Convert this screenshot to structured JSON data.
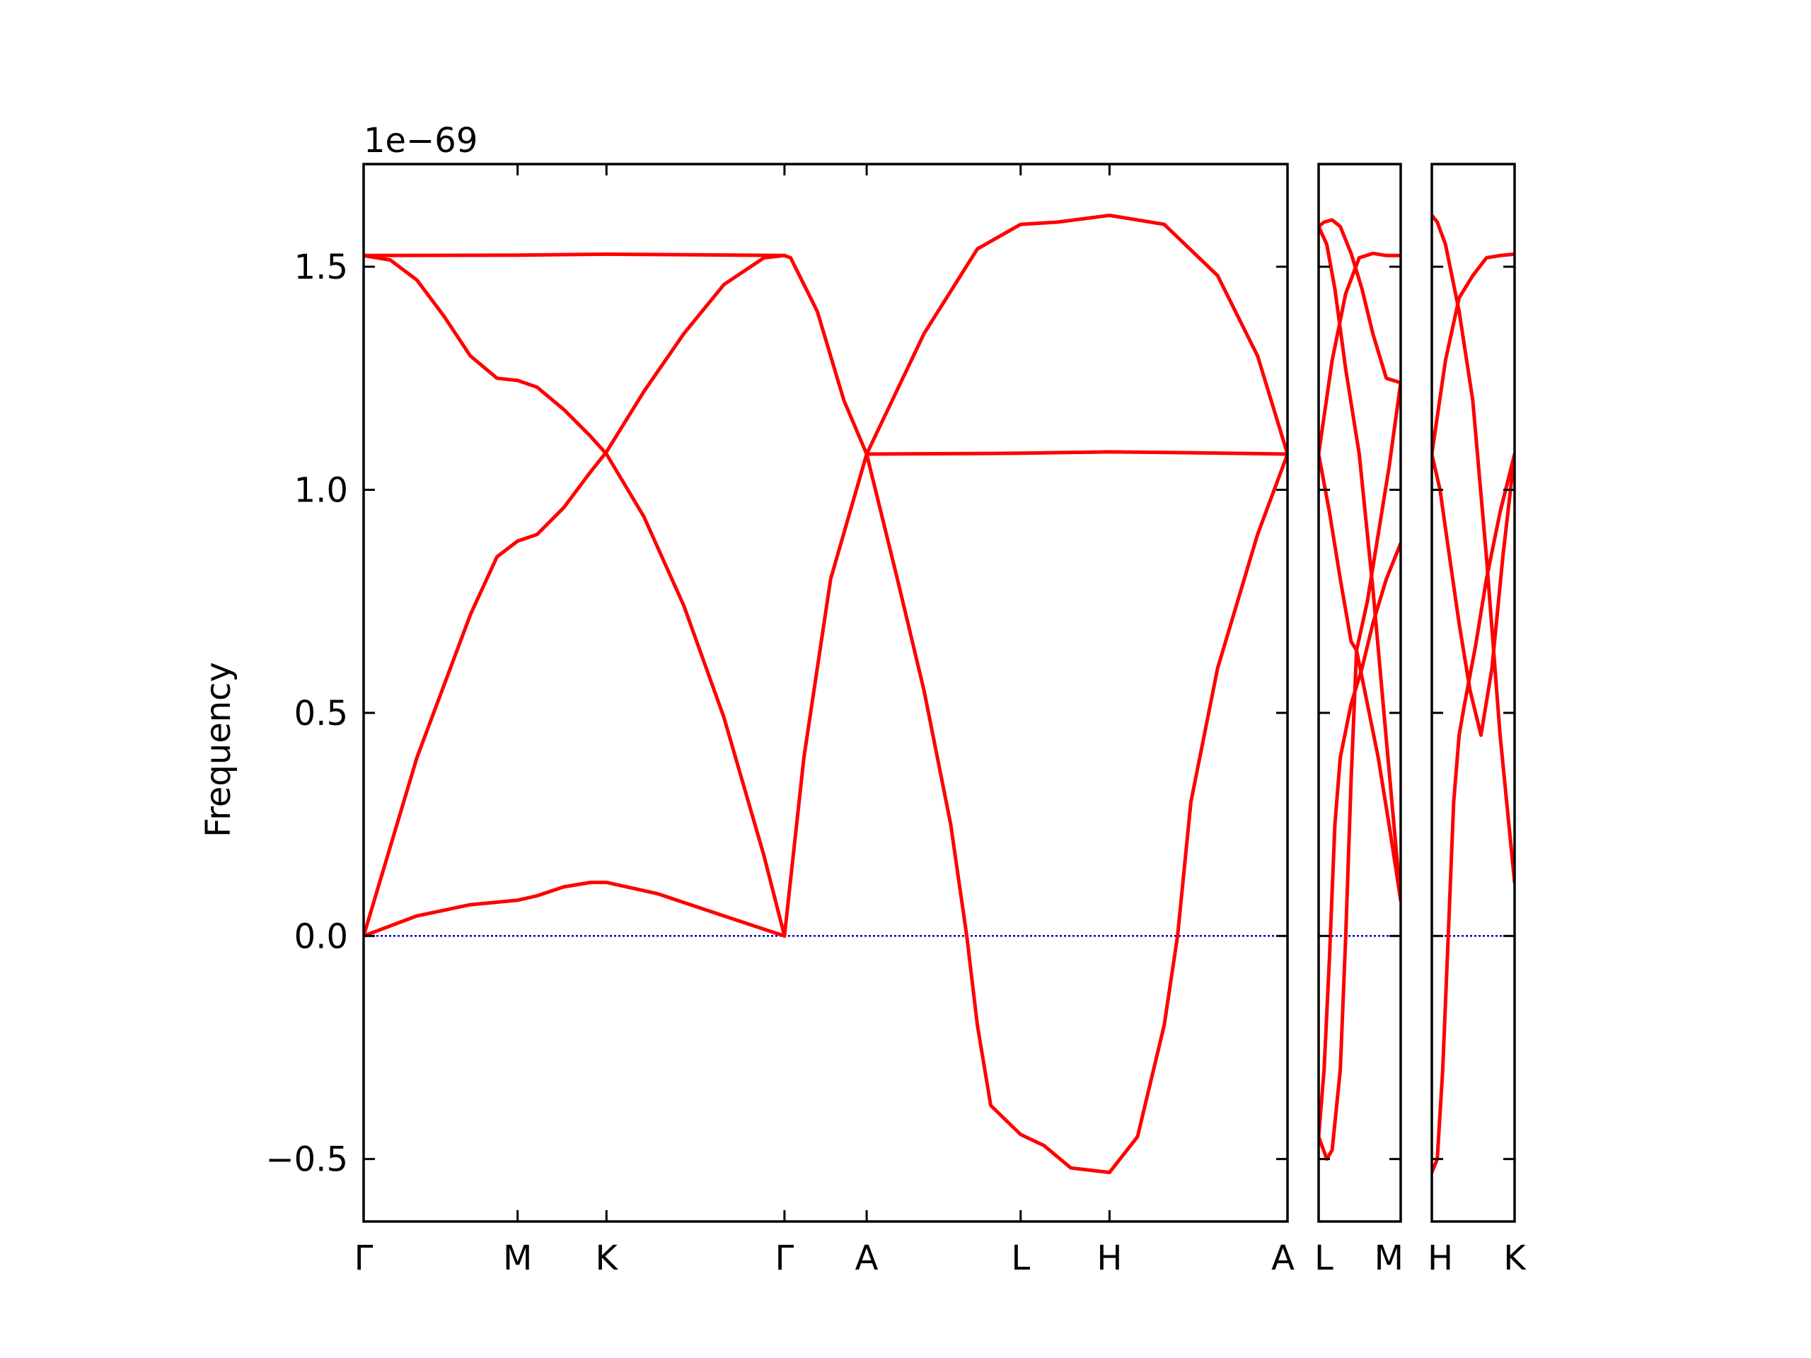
{
  "chart_data": {
    "type": "line",
    "title": "",
    "xlabel": "",
    "ylabel": "Frequency",
    "y_offset_label": "1e−69",
    "ylim": [
      -0.64,
      1.73
    ],
    "yticks": [
      -0.5,
      0.0,
      0.5,
      1.0,
      1.5
    ],
    "ytick_labels": [
      "−0.5",
      "0.0",
      "0.5",
      "1.0",
      "1.5"
    ],
    "grid": false,
    "legend": "none",
    "colors": {
      "band": "#ff0000",
      "zero_line": "#0000cc",
      "axes": "#000000"
    },
    "segments": [
      {
        "name": "segment-1",
        "labels": [
          "Γ",
          "M",
          "K",
          "Γ",
          "A",
          "L",
          "H",
          "A"
        ],
        "label_positions": [
          0,
          0.577,
          0.91,
          1.577,
          1.885,
          2.462,
          2.795,
          3.462
        ],
        "x_range": [
          0,
          3.462
        ],
        "bands": [
          {
            "x": [
              0,
              0.2,
              0.4,
              0.577,
              0.65,
              0.75,
              0.85,
              0.91,
              1.1,
              1.3,
              1.5,
              1.577,
              1.65,
              1.75,
              1.885
            ],
            "y": [
              0,
              0.045,
              0.07,
              0.08,
              0.09,
              0.11,
              0.12,
              0.12,
              0.095,
              0.055,
              0.015,
              0,
              0.4,
              0.8,
              1.08
            ]
          },
          {
            "x": [
              0,
              0.2,
              0.4,
              0.5,
              0.577,
              0.65,
              0.75,
              0.85,
              0.91,
              1.05,
              1.2,
              1.35,
              1.5,
              1.577
            ],
            "y": [
              0,
              0.4,
              0.72,
              0.85,
              0.885,
              0.9,
              0.96,
              1.04,
              1.085,
              1.22,
              1.35,
              1.46,
              1.52,
              1.525
            ]
          },
          {
            "x": [
              0,
              0.1,
              0.2,
              0.3,
              0.4,
              0.5,
              0.577,
              0.65,
              0.75,
              0.85,
              0.91,
              1.05,
              1.2,
              1.35,
              1.5,
              1.577
            ],
            "y": [
              1.525,
              1.515,
              1.47,
              1.39,
              1.3,
              1.25,
              1.245,
              1.23,
              1.18,
              1.12,
              1.08,
              0.94,
              0.74,
              0.49,
              0.18,
              0
            ]
          },
          {
            "x": [
              0,
              0.577,
              0.91,
              1.2,
              1.577,
              1.6,
              1.7,
              1.8,
              1.885,
              2.1,
              2.3,
              2.462,
              2.6,
              2.795,
              3.0,
              3.2,
              3.35,
              3.462
            ],
            "y": [
              1.525,
              1.526,
              1.528,
              1.527,
              1.525,
              1.52,
              1.4,
              1.2,
              1.08,
              1.35,
              1.54,
              1.595,
              1.6,
              1.615,
              1.595,
              1.48,
              1.3,
              1.08
            ]
          },
          {
            "x": [
              1.885,
              2.0,
              2.1,
              2.2,
              2.26,
              2.3,
              2.35,
              2.462,
              2.55,
              2.65,
              2.795,
              2.9,
              3.0,
              3.05,
              3.1,
              3.2,
              3.35,
              3.462
            ],
            "y": [
              1.08,
              0.8,
              0.55,
              0.25,
              0.0,
              -0.2,
              -0.38,
              -0.445,
              -0.47,
              -0.52,
              -0.53,
              -0.45,
              -0.2,
              0.0,
              0.3,
              0.6,
              0.9,
              1.08
            ]
          },
          {
            "x": [
              1.885,
              2.2,
              2.462,
              2.795,
              3.1,
              3.462
            ],
            "y": [
              1.08,
              1.081,
              1.082,
              1.085,
              1.083,
              1.08
            ]
          }
        ]
      },
      {
        "name": "segment-2",
        "labels": [
          "L",
          "M"
        ],
        "label_positions": [
          0,
          0.303
        ],
        "x_range": [
          0,
          0.303
        ],
        "bands": [
          {
            "x": [
              0,
              0.02,
              0.05,
              0.08,
              0.12,
              0.16,
              0.2,
              0.25,
              0.303
            ],
            "y": [
              1.59,
              1.6,
              1.605,
              1.59,
              1.53,
              1.45,
              1.35,
              1.25,
              1.24
            ]
          },
          {
            "x": [
              0,
              0.03,
              0.06,
              0.1,
              0.15,
              0.2,
              0.25,
              0.303
            ],
            "y": [
              1.59,
              1.55,
              1.45,
              1.27,
              1.08,
              0.78,
              0.44,
              0.08
            ]
          },
          {
            "x": [
              0,
              0.05,
              0.1,
              0.15,
              0.2,
              0.25,
              0.303
            ],
            "y": [
              1.08,
              1.29,
              1.44,
              1.52,
              1.53,
              1.525,
              1.525
            ]
          },
          {
            "x": [
              0,
              0.04,
              0.08,
              0.12,
              0.14,
              0.18,
              0.22,
              0.26,
              0.303
            ],
            "y": [
              1.08,
              0.95,
              0.8,
              0.66,
              0.64,
              0.52,
              0.4,
              0.25,
              0.08
            ]
          },
          {
            "x": [
              0,
              0.03,
              0.05,
              0.08,
              0.1,
              0.12,
              0.14,
              0.18,
              0.22,
              0.26,
              0.303
            ],
            "y": [
              -0.45,
              -0.5,
              -0.48,
              -0.3,
              0.0,
              0.35,
              0.64,
              0.75,
              0.9,
              1.05,
              1.24
            ]
          },
          {
            "x": [
              0,
              0.02,
              0.04,
              0.05,
              0.06,
              0.08,
              0.12,
              0.16,
              0.2,
              0.25,
              0.303
            ],
            "y": [
              -0.45,
              -0.3,
              -0.05,
              0.1,
              0.25,
              0.4,
              0.52,
              0.6,
              0.7,
              0.8,
              0.88
            ]
          }
        ]
      },
      {
        "name": "segment-3",
        "labels": [
          "H",
          "K"
        ],
        "label_positions": [
          0,
          0.303
        ],
        "x_range": [
          0,
          0.303
        ],
        "bands": [
          {
            "x": [
              0,
              0.02,
              0.05,
              0.1,
              0.15,
              0.2,
              0.25,
              0.303
            ],
            "y": [
              1.615,
              1.6,
              1.55,
              1.4,
              1.2,
              0.85,
              0.45,
              0.12
            ]
          },
          {
            "x": [
              0,
              0.05,
              0.1,
              0.15,
              0.2,
              0.25,
              0.303
            ],
            "y": [
              1.08,
              1.29,
              1.43,
              1.48,
              1.52,
              1.525,
              1.528
            ]
          },
          {
            "x": [
              0,
              0.03,
              0.06,
              0.1,
              0.14,
              0.18,
              0.22,
              0.26,
              0.303
            ],
            "y": [
              1.08,
              1.0,
              0.87,
              0.7,
              0.55,
              0.45,
              0.6,
              0.85,
              1.08
            ]
          },
          {
            "x": [
              0,
              0.02,
              0.04,
              0.06,
              0.08,
              0.1,
              0.12,
              0.16,
              0.2,
              0.25,
              0.303
            ],
            "y": [
              -0.53,
              -0.5,
              -0.3,
              0.0,
              0.3,
              0.45,
              0.52,
              0.65,
              0.8,
              0.95,
              1.08
            ]
          }
        ]
      }
    ]
  }
}
